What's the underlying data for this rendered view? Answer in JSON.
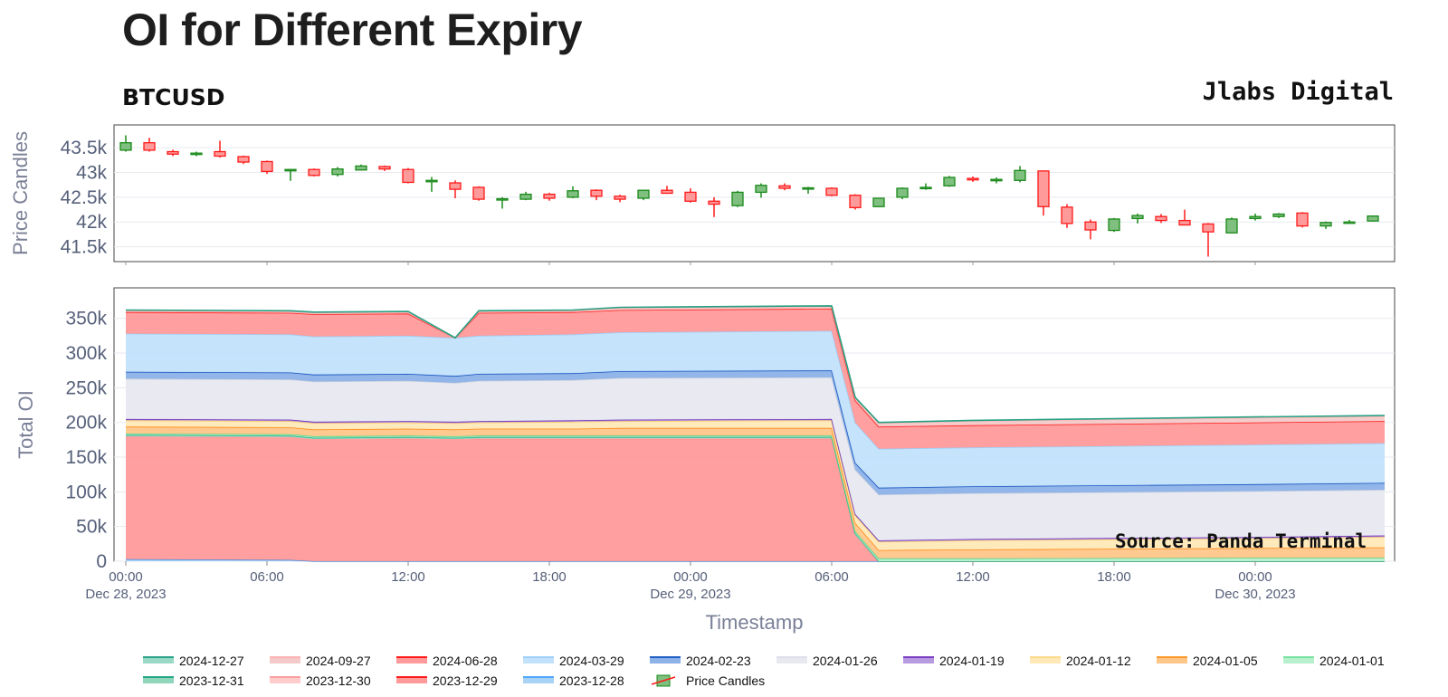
{
  "header": {
    "title": "OI for Different Expiry",
    "subtitle": "BTCUSD",
    "brand": "Jlabs Digital",
    "source": "Source: Panda Terminal"
  },
  "colors": {
    "up": "#1a8a1a",
    "up_fill": "#7fbf7f",
    "down": "#ff1a1a",
    "down_fill": "#ff9a9a",
    "grid": "#e8eaf0",
    "frame": "#444444"
  },
  "chart_data": [
    {
      "type": "candlestick",
      "ylabel": "Price Candles",
      "yticks": [
        41500,
        42000,
        42500,
        43000,
        43500
      ],
      "ytick_labels": [
        "41.5k",
        "42k",
        "42.5k",
        "43k",
        "43.5k"
      ],
      "ylim": [
        41200,
        43960
      ],
      "x_hours_start": 0,
      "x_hours_step": 1,
      "candles": [
        {
          "o": 43450,
          "h": 43750,
          "l": 43420,
          "c": 43600
        },
        {
          "o": 43600,
          "h": 43700,
          "l": 43420,
          "c": 43450
        },
        {
          "o": 43420,
          "h": 43460,
          "l": 43330,
          "c": 43370
        },
        {
          "o": 43370,
          "h": 43420,
          "l": 43330,
          "c": 43390
        },
        {
          "o": 43420,
          "h": 43640,
          "l": 43300,
          "c": 43330
        },
        {
          "o": 43320,
          "h": 43340,
          "l": 43170,
          "c": 43210
        },
        {
          "o": 43220,
          "h": 43240,
          "l": 42970,
          "c": 43020
        },
        {
          "o": 43040,
          "h": 43060,
          "l": 42830,
          "c": 43060
        },
        {
          "o": 43060,
          "h": 43080,
          "l": 42920,
          "c": 42940
        },
        {
          "o": 42960,
          "h": 43110,
          "l": 42920,
          "c": 43070
        },
        {
          "o": 43050,
          "h": 43160,
          "l": 43040,
          "c": 43130
        },
        {
          "o": 43120,
          "h": 43140,
          "l": 43030,
          "c": 43070
        },
        {
          "o": 43060,
          "h": 43090,
          "l": 42780,
          "c": 42800
        },
        {
          "o": 42840,
          "h": 42910,
          "l": 42610,
          "c": 42840
        },
        {
          "o": 42790,
          "h": 42840,
          "l": 42480,
          "c": 42660
        },
        {
          "o": 42700,
          "h": 42720,
          "l": 42430,
          "c": 42460
        },
        {
          "o": 42450,
          "h": 42500,
          "l": 42270,
          "c": 42470
        },
        {
          "o": 42460,
          "h": 42610,
          "l": 42440,
          "c": 42560
        },
        {
          "o": 42560,
          "h": 42590,
          "l": 42430,
          "c": 42480
        },
        {
          "o": 42500,
          "h": 42720,
          "l": 42480,
          "c": 42630
        },
        {
          "o": 42640,
          "h": 42660,
          "l": 42440,
          "c": 42520
        },
        {
          "o": 42520,
          "h": 42550,
          "l": 42400,
          "c": 42460
        },
        {
          "o": 42480,
          "h": 42640,
          "l": 42440,
          "c": 42640
        },
        {
          "o": 42640,
          "h": 42730,
          "l": 42570,
          "c": 42580
        },
        {
          "o": 42600,
          "h": 42680,
          "l": 42390,
          "c": 42420
        },
        {
          "o": 42420,
          "h": 42500,
          "l": 42100,
          "c": 42360
        },
        {
          "o": 42330,
          "h": 42630,
          "l": 42300,
          "c": 42600
        },
        {
          "o": 42600,
          "h": 42780,
          "l": 42490,
          "c": 42740
        },
        {
          "o": 42730,
          "h": 42780,
          "l": 42640,
          "c": 42680
        },
        {
          "o": 42690,
          "h": 42710,
          "l": 42570,
          "c": 42690
        },
        {
          "o": 42680,
          "h": 42700,
          "l": 42520,
          "c": 42540
        },
        {
          "o": 42540,
          "h": 42560,
          "l": 42250,
          "c": 42290
        },
        {
          "o": 42310,
          "h": 42480,
          "l": 42300,
          "c": 42480
        },
        {
          "o": 42500,
          "h": 42700,
          "l": 42460,
          "c": 42680
        },
        {
          "o": 42690,
          "h": 42780,
          "l": 42650,
          "c": 42700
        },
        {
          "o": 42730,
          "h": 42930,
          "l": 42710,
          "c": 42900
        },
        {
          "o": 42880,
          "h": 42920,
          "l": 42810,
          "c": 42850
        },
        {
          "o": 42850,
          "h": 42900,
          "l": 42780,
          "c": 42860
        },
        {
          "o": 42840,
          "h": 43130,
          "l": 42800,
          "c": 43040
        },
        {
          "o": 43030,
          "h": 43040,
          "l": 42130,
          "c": 42310
        },
        {
          "o": 42300,
          "h": 42360,
          "l": 41880,
          "c": 41970
        },
        {
          "o": 42000,
          "h": 42050,
          "l": 41650,
          "c": 41840
        },
        {
          "o": 41830,
          "h": 42080,
          "l": 41800,
          "c": 42060
        },
        {
          "o": 42070,
          "h": 42170,
          "l": 41970,
          "c": 42130
        },
        {
          "o": 42110,
          "h": 42160,
          "l": 41980,
          "c": 42030
        },
        {
          "o": 42030,
          "h": 42250,
          "l": 41930,
          "c": 41940
        },
        {
          "o": 41960,
          "h": 41980,
          "l": 41300,
          "c": 41800
        },
        {
          "o": 41780,
          "h": 42090,
          "l": 41770,
          "c": 42060
        },
        {
          "o": 42070,
          "h": 42170,
          "l": 42030,
          "c": 42110
        },
        {
          "o": 42110,
          "h": 42180,
          "l": 42080,
          "c": 42160
        },
        {
          "o": 42180,
          "h": 42200,
          "l": 41890,
          "c": 41920
        },
        {
          "o": 41920,
          "h": 42010,
          "l": 41860,
          "c": 41990
        },
        {
          "o": 41980,
          "h": 42040,
          "l": 41970,
          "c": 42000
        },
        {
          "o": 42020,
          "h": 42130,
          "l": 42010,
          "c": 42120
        }
      ]
    },
    {
      "type": "area",
      "stacked": true,
      "ylabel": "Total OI",
      "xlabel": "Timestamp",
      "yticks": [
        0,
        50000,
        100000,
        150000,
        200000,
        250000,
        300000,
        350000
      ],
      "ytick_labels": [
        "0",
        "50k",
        "100k",
        "150k",
        "200k",
        "250k",
        "300k",
        "350k"
      ],
      "ylim": [
        0,
        394000
      ],
      "x_hours": [
        0,
        7,
        8,
        12,
        14,
        15,
        19,
        21,
        30,
        31,
        32,
        36,
        48,
        53.5
      ],
      "series": [
        {
          "name": "2023-12-28",
          "color": "#4da6ff",
          "line": "#4a90e2",
          "fill": "#a9d3f5",
          "values": [
            3000,
            2000,
            0,
            0,
            0,
            0,
            0,
            0,
            0,
            0,
            0,
            0,
            0,
            0
          ]
        },
        {
          "name": "2023-12-29",
          "color": "#ff1a1a",
          "line": "#ff4040",
          "fill": "#ff9a9a",
          "values": [
            177000,
            177000,
            176000,
            177000,
            176000,
            177000,
            177000,
            177000,
            177000,
            38000,
            0,
            0,
            0,
            0
          ]
        },
        {
          "name": "2023-12-30",
          "color": "#ff9e9e",
          "line": "#ffb0b0",
          "fill": "#ffcccc",
          "values": [
            0,
            0,
            0,
            0,
            0,
            0,
            0,
            0,
            0,
            0,
            0,
            0,
            0,
            0
          ]
        },
        {
          "name": "2023-12-31",
          "color": "#22a884",
          "line": "#2ab88f",
          "fill": "#8fd6bc",
          "values": [
            2000,
            2000,
            2000,
            2000,
            2000,
            2000,
            2000,
            2000,
            2000,
            2000,
            0,
            0,
            0,
            0
          ]
        },
        {
          "name": "2024-01-01",
          "color": "#77e2a0",
          "line": "#55d68a",
          "fill": "#b8f0cd",
          "values": [
            2000,
            2000,
            2000,
            2000,
            2000,
            2000,
            2000,
            2000,
            2000,
            3000,
            4000,
            4000,
            5000,
            5000
          ]
        },
        {
          "name": "2024-01-05",
          "color": "#ff9a2a",
          "line": "#ff8c1a",
          "fill": "#ffc68a",
          "values": [
            10000,
            10000,
            10000,
            10000,
            10000,
            10000,
            10000,
            11000,
            11000,
            12000,
            12000,
            13000,
            14000,
            15000
          ]
        },
        {
          "name": "2024-01-12",
          "color": "#ffd98a",
          "line": "#ffcf6a",
          "fill": "#ffe9b8",
          "values": [
            9000,
            9000,
            9000,
            9000,
            9000,
            9000,
            10000,
            10000,
            11000,
            11000,
            12000,
            13000,
            14000,
            15000
          ]
        },
        {
          "name": "2024-01-19",
          "color": "#7b3fc4",
          "line": "#6a2fb8",
          "fill": "#b89ae0",
          "values": [
            2000,
            2000,
            2000,
            2000,
            2000,
            2000,
            2000,
            2000,
            2000,
            2000,
            2000,
            2000,
            2000,
            2000
          ]
        },
        {
          "name": "2024-01-26",
          "color": "#dcdfe8",
          "line": "#cfd3df",
          "fill": "#e8e9f0",
          "values": [
            58000,
            58000,
            58000,
            58000,
            56000,
            58000,
            58000,
            60000,
            60000,
            64000,
            66000,
            66000,
            66000,
            66000
          ]
        },
        {
          "name": "2024-02-23",
          "color": "#1f5fc4",
          "line": "#1a55c0",
          "fill": "#8cb2e8",
          "values": [
            10000,
            10000,
            10000,
            10000,
            10000,
            10000,
            10000,
            10000,
            10000,
            10000,
            10000,
            10000,
            10000,
            10000
          ]
        },
        {
          "name": "2024-03-29",
          "color": "#9fd0fb",
          "line": "#9fcff7",
          "fill": "#c2e2fb",
          "values": [
            55000,
            55000,
            55000,
            55000,
            55000,
            55000,
            56000,
            56000,
            57000,
            58000,
            56000,
            56000,
            57000,
            57000
          ]
        },
        {
          "name": "2024-06-28",
          "color": "#ff2a2a",
          "line": "#ff2020",
          "fill": "#ff9a9a",
          "values": [
            31000,
            31000,
            32000,
            32000,
            0,
            33000,
            32000,
            32000,
            32000,
            32000,
            32000,
            32000,
            32000,
            32000
          ]
        },
        {
          "name": "2024-09-27",
          "color": "#ffb3b3",
          "line": "#ffb3b3",
          "fill": "#f4c9c9",
          "values": [
            2000,
            2000,
            2000,
            2000,
            0,
            2000,
            2000,
            3000,
            3000,
            3000,
            5000,
            6000,
            7000,
            7000
          ]
        },
        {
          "name": "2024-12-27",
          "color": "#2aa38a",
          "line": "#27a084",
          "fill": "#9ad9c6",
          "values": [
            1000,
            1000,
            1000,
            1000,
            0,
            1000,
            1000,
            1000,
            1000,
            1000,
            1000,
            1000,
            1000,
            1000
          ]
        }
      ],
      "x_tick_labels": [
        "00:00",
        "06:00",
        "12:00",
        "18:00",
        "00:00",
        "06:00",
        "12:00",
        "18:00",
        "00:00"
      ],
      "x_tick_hours": [
        0,
        6,
        12,
        18,
        24,
        30,
        36,
        42,
        48
      ],
      "x_date_labels": [
        "Dec 28, 2023",
        "Dec 29, 2023",
        "Dec 30, 2023"
      ],
      "x_date_hours": [
        0,
        24,
        48
      ]
    }
  ],
  "legend": {
    "items": [
      {
        "label": "2024-12-27",
        "color": "#2aa38a",
        "fill": "#9ad9c6",
        "kind": "line"
      },
      {
        "label": "2024-09-27",
        "color": "#ffb3b3",
        "fill": "#f4c9c9",
        "kind": "line"
      },
      {
        "label": "2024-06-28",
        "color": "#ff1a1a",
        "fill": "#ff9a9a",
        "kind": "line"
      },
      {
        "label": "2024-03-29",
        "color": "#9fd0fb",
        "fill": "#c2e2fb",
        "kind": "line"
      },
      {
        "label": "2024-02-23",
        "color": "#1f5fc4",
        "fill": "#8cb2e8",
        "kind": "line"
      },
      {
        "label": "2024-01-26",
        "color": "#dcdfe8",
        "fill": "#e8e9f0",
        "kind": "line"
      },
      {
        "label": "2024-01-19",
        "color": "#7b3fc4",
        "fill": "#b89ae0",
        "kind": "line"
      },
      {
        "label": "2024-01-12",
        "color": "#ffd98a",
        "fill": "#ffe9b8",
        "kind": "line"
      },
      {
        "label": "2024-01-05",
        "color": "#ff9a2a",
        "fill": "#ffc68a",
        "kind": "line"
      },
      {
        "label": "2024-01-01",
        "color": "#77e2a0",
        "fill": "#b8f0cd",
        "kind": "line"
      },
      {
        "label": "2023-12-31",
        "color": "#22a884",
        "fill": "#8fd6bc",
        "kind": "line"
      },
      {
        "label": "2023-12-30",
        "color": "#ff9e9e",
        "fill": "#ffcccc",
        "kind": "line"
      },
      {
        "label": "2023-12-29",
        "color": "#ff1a1a",
        "fill": "#ff9a9a",
        "kind": "line"
      },
      {
        "label": "2023-12-28",
        "color": "#4da6ff",
        "fill": "#a9d3f5",
        "kind": "line"
      },
      {
        "label": "Price Candles",
        "color": "#ff1a1a",
        "fill": "#7fbf7f",
        "kind": "candle"
      }
    ]
  }
}
